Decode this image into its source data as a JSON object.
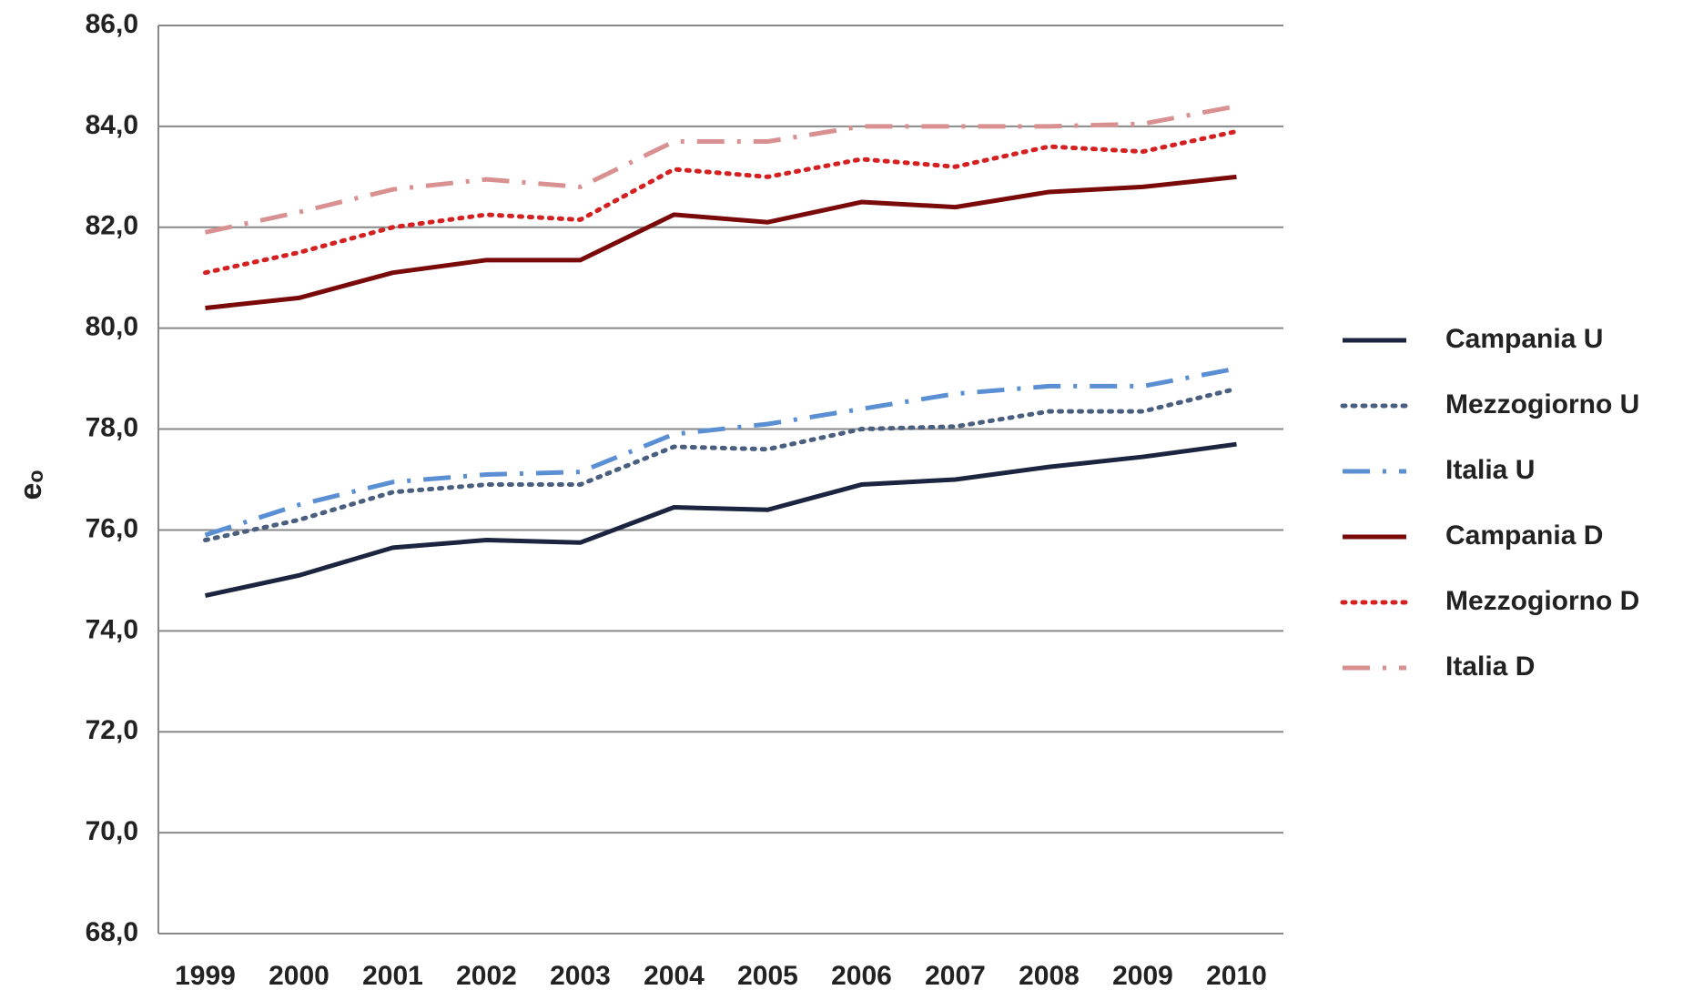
{
  "chart_data": {
    "type": "line",
    "y_label": "eₒ",
    "categories": [
      "1999",
      "2000",
      "2001",
      "2002",
      "2003",
      "2004",
      "2005",
      "2006",
      "2007",
      "2008",
      "2009",
      "2010"
    ],
    "ylim": [
      68,
      86
    ],
    "yticks": [
      {
        "value": 68,
        "label": "68,0"
      },
      {
        "value": 70,
        "label": "70,0"
      },
      {
        "value": 72,
        "label": "72,0"
      },
      {
        "value": 74,
        "label": "74,0"
      },
      {
        "value": 76,
        "label": "76,0"
      },
      {
        "value": 78,
        "label": "78,0"
      },
      {
        "value": 80,
        "label": "80,0"
      },
      {
        "value": 82,
        "label": "82,0"
      },
      {
        "value": 84,
        "label": "84,0"
      },
      {
        "value": 86,
        "label": "86,0"
      }
    ],
    "grid": true,
    "legend": "right",
    "series": [
      {
        "name": "Campania U",
        "color": "#1c2540",
        "style": "solid",
        "values": [
          74.7,
          75.1,
          75.65,
          75.8,
          75.75,
          76.45,
          76.4,
          76.9,
          77.0,
          77.25,
          77.45,
          77.7
        ]
      },
      {
        "name": "Mezzogiorno U",
        "color": "#4a5f80",
        "style": "dotted",
        "values": [
          75.8,
          76.2,
          76.75,
          76.9,
          76.9,
          77.65,
          77.6,
          78.0,
          78.05,
          78.35,
          78.35,
          78.8
        ]
      },
      {
        "name": "Italia U",
        "color": "#5b8fd4",
        "style": "dashdot",
        "values": [
          75.9,
          76.5,
          76.95,
          77.1,
          77.15,
          77.9,
          78.1,
          78.4,
          78.7,
          78.85,
          78.85,
          79.2
        ]
      },
      {
        "name": "Campania D",
        "color": "#7a0a0a",
        "style": "solid",
        "values": [
          80.4,
          80.6,
          81.1,
          81.35,
          81.35,
          82.25,
          82.1,
          82.5,
          82.4,
          82.7,
          82.8,
          83.0
        ]
      },
      {
        "name": "Mezzogiorno D",
        "color": "#d42020",
        "style": "dotted",
        "values": [
          81.1,
          81.5,
          82.0,
          82.25,
          82.15,
          83.15,
          83.0,
          83.35,
          83.2,
          83.6,
          83.5,
          83.9
        ]
      },
      {
        "name": "Italia D",
        "color": "#d99090",
        "style": "dashdot",
        "values": [
          81.9,
          82.3,
          82.75,
          82.95,
          82.8,
          83.7,
          83.7,
          84.0,
          84.0,
          84.0,
          84.05,
          84.4
        ]
      }
    ]
  }
}
